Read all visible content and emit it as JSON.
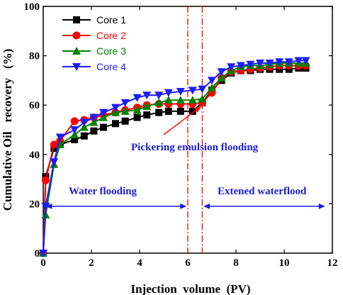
{
  "chart_data": {
    "type": "line",
    "xlabel": "Injection  volume  (PV)",
    "ylabel": "Cumulative Oil   recovery   (%)",
    "xlim": [
      0,
      12
    ],
    "ylim": [
      0,
      100
    ],
    "xticks": [
      "0",
      "2",
      "4",
      "6",
      "8",
      "10",
      "12"
    ],
    "yticks": [
      "0",
      "20",
      "40",
      "60",
      "80",
      "100"
    ],
    "grid": false,
    "legend_position": "top-left",
    "series": [
      {
        "name": "Core 1",
        "color": "#000000",
        "marker": "square",
        "x": [
          0,
          0.1,
          0.45,
          0.7,
          1.3,
          1.7,
          2.1,
          2.5,
          3.0,
          3.4,
          3.9,
          4.3,
          4.8,
          5.2,
          5.7,
          6.2,
          6.6,
          7.0,
          7.4,
          7.8,
          8.2,
          8.6,
          9.0,
          9.4,
          9.8,
          10.2,
          10.6,
          10.9
        ],
        "y": [
          0,
          31,
          42.5,
          44,
          46,
          47.5,
          49.5,
          51,
          52.5,
          53.5,
          55,
          56,
          57,
          57.5,
          57.5,
          57.5,
          61,
          66,
          70,
          73,
          74,
          74,
          74.5,
          74.5,
          74.5,
          74.5,
          75,
          75
        ]
      },
      {
        "name": "Core 2",
        "color": "#ff0000",
        "marker": "circle",
        "x": [
          0,
          0.1,
          0.45,
          0.7,
          1.3,
          1.7,
          2.1,
          2.5,
          3.0,
          3.4,
          3.9,
          4.3,
          4.8,
          5.2,
          5.7,
          6.2,
          6.6,
          7.0,
          7.4,
          7.8,
          8.2,
          8.6,
          9.0,
          9.4,
          9.8,
          10.2,
          10.6,
          10.9
        ],
        "y": [
          0,
          29.5,
          44,
          45.5,
          53.5,
          54,
          55,
          56,
          57,
          58,
          59,
          60,
          60.5,
          60.5,
          60.5,
          60.5,
          61,
          65,
          71,
          73.5,
          74,
          74.5,
          75,
          75.5,
          76,
          76,
          76,
          76
        ]
      },
      {
        "name": "Core 3",
        "color": "#008000",
        "marker": "triangle-up",
        "x": [
          0,
          0.1,
          0.45,
          0.7,
          1.3,
          1.7,
          2.1,
          2.5,
          3.0,
          3.4,
          3.9,
          4.3,
          4.8,
          5.2,
          5.7,
          6.2,
          6.6,
          7.0,
          7.4,
          7.8,
          8.2,
          8.6,
          9.0,
          9.4,
          9.8,
          10.2,
          10.6,
          10.9
        ],
        "y": [
          0,
          15.5,
          36,
          44,
          48,
          51,
          53,
          55,
          57,
          57.5,
          58,
          59.5,
          61,
          62,
          62,
          62,
          62.5,
          67,
          71,
          74,
          75.5,
          76,
          76,
          76.5,
          77,
          77,
          77,
          77
        ]
      },
      {
        "name": "Core 4",
        "color": "#1c1cff",
        "marker": "triangle-down",
        "x": [
          0,
          0.1,
          0.45,
          0.7,
          1.3,
          1.7,
          2.1,
          2.5,
          3.0,
          3.4,
          3.9,
          4.3,
          4.8,
          5.2,
          5.7,
          6.2,
          6.6,
          7.0,
          7.4,
          7.8,
          8.2,
          8.6,
          9.0,
          9.4,
          9.8,
          10.2,
          10.6,
          10.9
        ],
        "y": [
          0,
          19,
          37,
          47,
          50,
          53,
          55,
          57,
          59,
          61,
          63,
          64,
          64,
          65,
          65.5,
          66,
          66.5,
          70,
          73.5,
          75.5,
          76,
          76.5,
          77,
          77,
          77.5,
          77.5,
          78,
          78
        ]
      }
    ],
    "vlines": [
      6.0,
      6.6
    ],
    "vline_color": "#ff0000",
    "arrow_color": "#1c1cd6",
    "annotations": {
      "pickering": "Pickering emulsion flooding",
      "water": "Water flooding",
      "extended": "Extened waterflood"
    },
    "arrows": {
      "water": {
        "x_from": 0.1,
        "x_to": 5.95,
        "y": 19
      },
      "extended": {
        "x_from": 6.65,
        "x_to": 11.7,
        "y": 19
      },
      "pickering": {
        "from": [
          5.0,
          48
        ],
        "to": [
          6.55,
          59.5
        ]
      }
    }
  }
}
